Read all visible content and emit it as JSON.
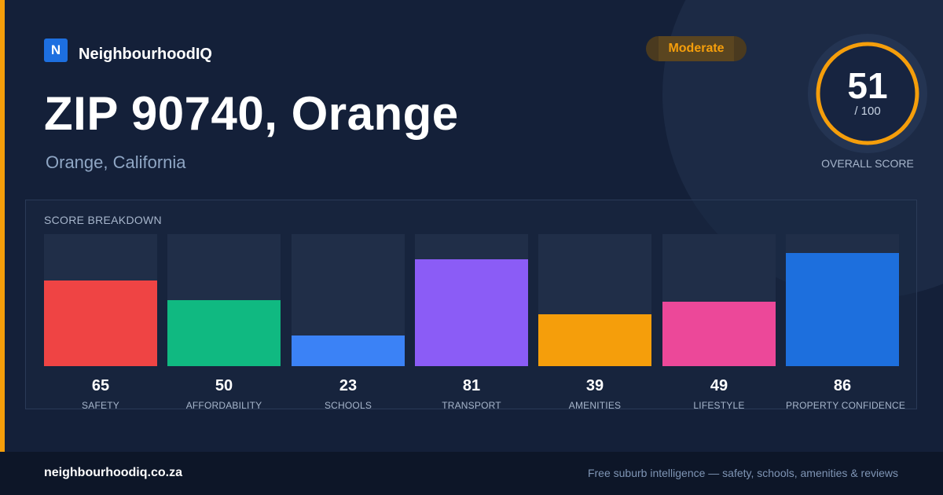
{
  "brand": {
    "logo_letter": "N",
    "name": "NeighbourhoodIQ"
  },
  "rating": {
    "label": "Moderate",
    "color": "#f59e0b"
  },
  "place": {
    "title": "ZIP 90740, Orange",
    "subtitle": "Orange, California"
  },
  "overall": {
    "value": "51",
    "max": "/ 100",
    "score": 51,
    "caption": "OVERALL SCORE",
    "ring_color": "#f59e0b"
  },
  "breakdown": {
    "title": "SCORE BREAKDOWN"
  },
  "chart_data": {
    "type": "bar",
    "categories": [
      "SAFETY",
      "AFFORDABILITY",
      "SCHOOLS",
      "TRANSPORT",
      "AMENITIES",
      "LIFESTYLE",
      "PROPERTY CONFIDENCE"
    ],
    "values": [
      65,
      50,
      23,
      81,
      39,
      49,
      86
    ],
    "colors": [
      "#ef4444",
      "#10b981",
      "#3b82f6",
      "#8b5cf6",
      "#f59e0b",
      "#ec4899",
      "#1d6fdd"
    ],
    "ylim": [
      0,
      100
    ]
  },
  "footer": {
    "domain": "neighbourhoodiq.co.za",
    "tagline": "Free suburb intelligence — safety, schools, amenities & reviews"
  }
}
